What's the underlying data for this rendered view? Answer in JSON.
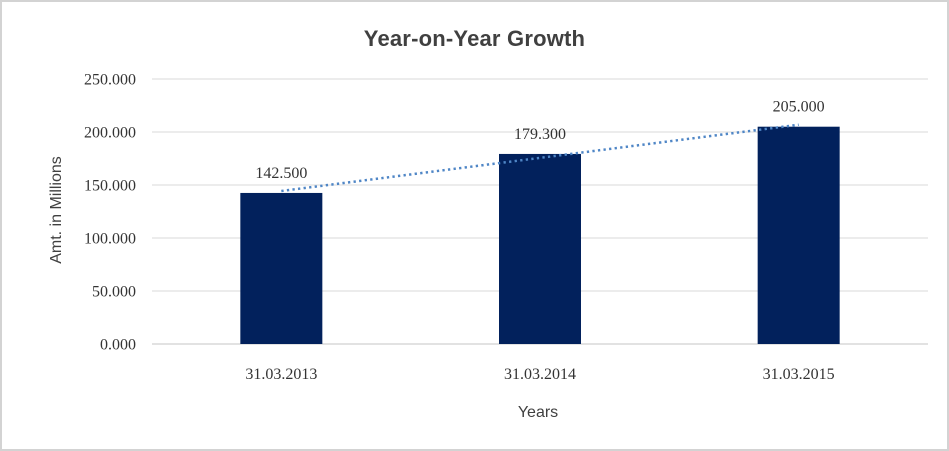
{
  "chart_data": {
    "type": "bar",
    "title": "Year-on-Year Growth",
    "categories": [
      "31.03.2013",
      "31.03.2014",
      "31.03.2015"
    ],
    "values": [
      142.5,
      179.3,
      205.0
    ],
    "value_labels": [
      "142.500",
      "179.300",
      "205.000"
    ],
    "xlabel": "Years",
    "ylabel": "Amt. in Millions",
    "ylim": [
      0,
      250
    ],
    "ytick_interval": 50,
    "ytick_labels": [
      "0.000",
      "50.000",
      "100.000",
      "150.000",
      "200.000",
      "250.000"
    ],
    "grid": true,
    "legend": "none",
    "trendline": {
      "type": "linear",
      "style": "dotted"
    },
    "colors": {
      "bar": "#02215C",
      "trendline": "#4F86C6",
      "gridline": "#D9D9D9",
      "axis_line": "#C6C6C6",
      "label_text": "#333333",
      "title_text": "#404040",
      "frame_border": "#D3D3D3",
      "background": "#FFFFFF"
    }
  }
}
